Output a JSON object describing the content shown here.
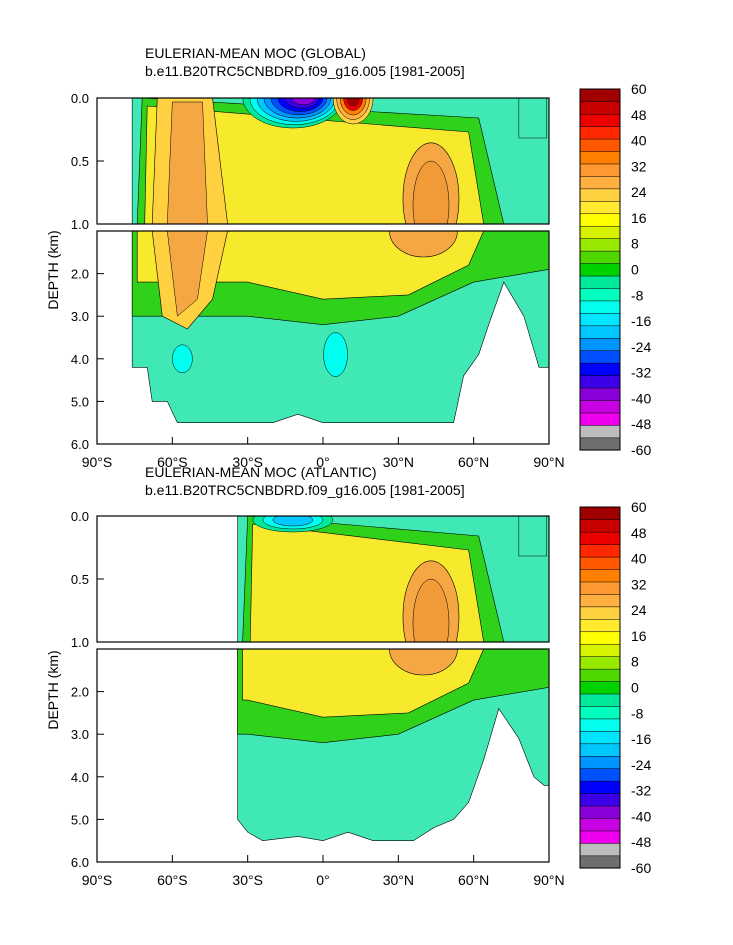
{
  "chart_data": [
    {
      "type": "heatmap",
      "title": "EULERIAN-MEAN MOC (GLOBAL)",
      "subtitle": "b.e11.B20TRC5CNBDRD.f09_g16.005 [1981-2005]",
      "ylabel": "DEPTH (km)",
      "x_range": [
        -90,
        90
      ],
      "x_ticks": [
        -90,
        -60,
        -30,
        0,
        30,
        60,
        90
      ],
      "x_tick_labels": [
        "90°S",
        "60°S",
        "30°S",
        "0°",
        "30°N",
        "60°N",
        "90°N"
      ],
      "upper_depth_range": [
        0,
        1.0
      ],
      "upper_y_ticks": [
        0.0,
        0.5,
        1.0
      ],
      "upper_y_tick_labels": [
        "0.0",
        "0.5",
        "1.0"
      ],
      "lower_depth_range": [
        1.0,
        6.0
      ],
      "lower_y_ticks": [
        2.0,
        3.0,
        4.0,
        5.0,
        6.0
      ],
      "lower_y_tick_labels": [
        "2.0",
        "3.0",
        "4.0",
        "5.0",
        "6.0"
      ],
      "colorbar_labels": [
        "60",
        "48",
        "40",
        "32",
        "24",
        "16",
        "8",
        "0",
        "-8",
        "-16",
        "-24",
        "-32",
        "-40",
        "-48",
        "-60"
      ]
    },
    {
      "type": "heatmap",
      "title": "EULERIAN-MEAN MOC (ATLANTIC)",
      "subtitle": "b.e11.B20TRC5CNBDRD.f09_g16.005 [1981-2005]",
      "ylabel": "DEPTH (km)",
      "x_range": [
        -90,
        90
      ],
      "x_ticks": [
        -90,
        -60,
        -30,
        0,
        30,
        60,
        90
      ],
      "x_tick_labels": [
        "90°S",
        "60°S",
        "30°S",
        "0°",
        "30°N",
        "60°N",
        "90°N"
      ],
      "upper_depth_range": [
        0,
        1.0
      ],
      "upper_y_ticks": [
        0.0,
        0.5,
        1.0
      ],
      "upper_y_tick_labels": [
        "0.0",
        "0.5",
        "1.0"
      ],
      "lower_depth_range": [
        1.0,
        6.0
      ],
      "lower_y_ticks": [
        2.0,
        3.0,
        4.0,
        5.0,
        6.0
      ],
      "lower_y_tick_labels": [
        "2.0",
        "3.0",
        "4.0",
        "5.0",
        "6.0"
      ],
      "colorbar_labels": [
        "60",
        "48",
        "40",
        "32",
        "24",
        "16",
        "8",
        "0",
        "-8",
        "-16",
        "-24",
        "-32",
        "-40",
        "-48",
        "-60"
      ]
    }
  ],
  "colors": {
    "level_scale": [
      "#6e6e6e",
      "#bdbdbd",
      "#ee00ee",
      "#c800e4",
      "#8a00d8",
      "#3b00e8",
      "#0000ff",
      "#0050ff",
      "#0096ff",
      "#00c8ff",
      "#00e6ff",
      "#00ffee",
      "#00ffbf",
      "#00e89a",
      "#00d200",
      "#4ed800",
      "#98e800",
      "#d8f200",
      "#ffff00",
      "#ffea30",
      "#ffd040",
      "#ffb040",
      "#ff9830",
      "#ff8000",
      "#ff5800",
      "#ff2800",
      "#ee0000",
      "#c80000",
      "#a00000"
    ],
    "ocean_bg": "#3fe8b4",
    "upper_mid": "#f7ea2c",
    "cell_core": "#f4a743",
    "green_band": "#2fd11a"
  }
}
